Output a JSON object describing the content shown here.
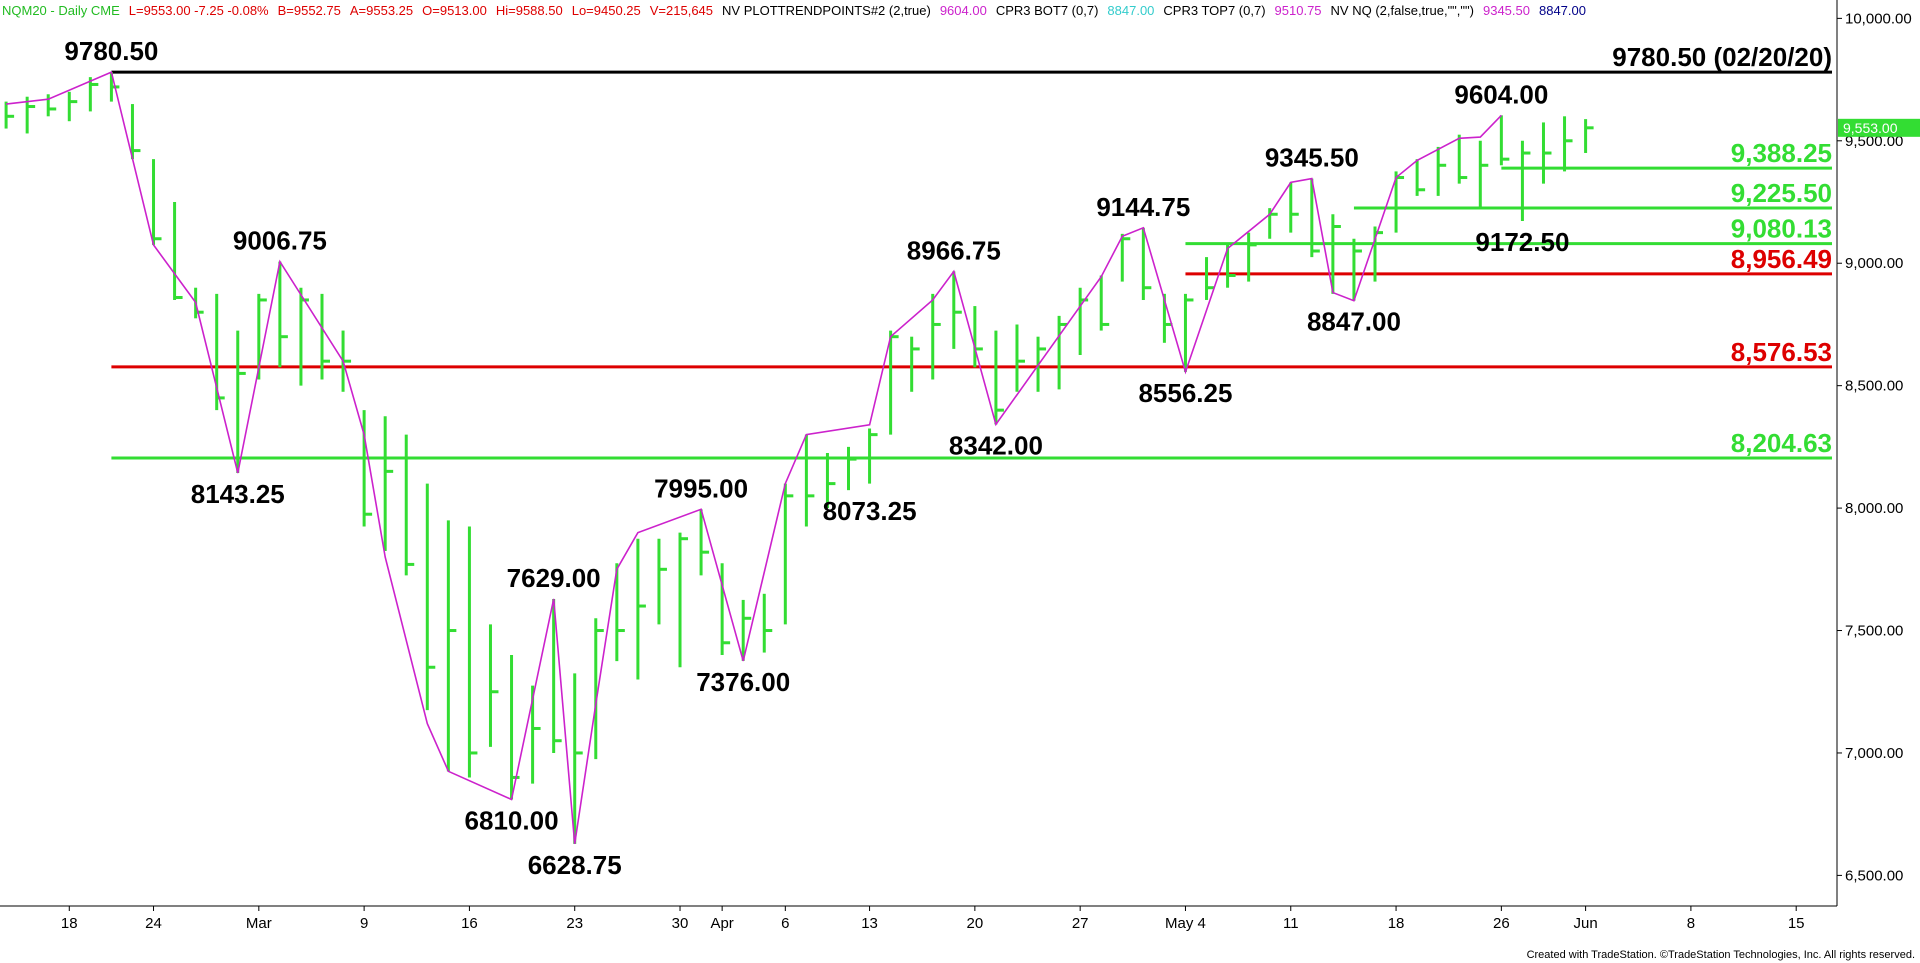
{
  "chart_data": {
    "type": "ohlc",
    "header": [
      {
        "text": "NQM20 - Daily  CME",
        "color": "#22bb22"
      },
      {
        "text": "L=9553.00  -7.25  -0.08%",
        "color": "#dd0000"
      },
      {
        "text": "B=9552.75",
        "color": "#dd0000"
      },
      {
        "text": "A=9553.25",
        "color": "#dd0000"
      },
      {
        "text": "O=9513.00",
        "color": "#dd0000"
      },
      {
        "text": "Hi=9588.50",
        "color": "#dd0000"
      },
      {
        "text": "Lo=9450.25",
        "color": "#dd0000"
      },
      {
        "text": "V=215,645",
        "color": "#dd0000"
      },
      {
        "text": "NV  PLOTTRENDPOINTS#2 (2,true)",
        "color": "#000000"
      },
      {
        "text": "9604.00",
        "color": "#cc22cc"
      },
      {
        "text": "CPR3 BOT7 (0,7)",
        "color": "#000000"
      },
      {
        "text": "8847.00",
        "color": "#33cccc"
      },
      {
        "text": "CPR3 TOP7 (0,7)",
        "color": "#000000"
      },
      {
        "text": "9510.75",
        "color": "#cc22cc"
      },
      {
        "text": "NV NQ (2,false,true,\"\",\"\")",
        "color": "#000000"
      },
      {
        "text": "9345.50",
        "color": "#cc22cc"
      },
      {
        "text": "8847.00",
        "color": "#000088"
      }
    ],
    "categories": [
      null,
      null,
      null,
      "18",
      null,
      null,
      null,
      "24",
      null,
      null,
      null,
      null,
      "Mar",
      null,
      null,
      null,
      null,
      "9",
      null,
      null,
      null,
      null,
      "16",
      null,
      null,
      null,
      null,
      "23",
      null,
      null,
      null,
      null,
      "30",
      null,
      "Apr",
      null,
      null,
      "6",
      null,
      null,
      null,
      "13",
      null,
      null,
      null,
      null,
      "20",
      null,
      null,
      null,
      null,
      "27",
      null,
      null,
      null,
      null,
      "May 4",
      null,
      null,
      null,
      null,
      "11",
      null,
      null,
      null,
      null,
      "18",
      null,
      null,
      null,
      null,
      "26",
      null,
      null,
      null,
      "Jun",
      null,
      null,
      null,
      null,
      "8",
      null,
      null,
      null,
      null,
      "15",
      null
    ],
    "color": "#33dd33",
    "high": [
      9660,
      9680,
      9690,
      9700,
      9760,
      9780.5,
      9650,
      9425,
      9250,
      8900,
      8875,
      8725,
      8875,
      9006.75,
      8900,
      8875,
      8725,
      8400,
      8375,
      8300,
      8100,
      7950,
      7925,
      7525,
      7400,
      7275,
      7629,
      7325,
      7550,
      7775,
      7875,
      7875,
      7900,
      7995,
      7775,
      7625,
      7650,
      8100,
      8300,
      8225,
      8250,
      8325,
      8725,
      8700,
      8875,
      8966.75,
      8825,
      8725,
      8750,
      8700,
      8785,
      8900,
      8950,
      9120,
      9144.75,
      8875,
      8875,
      9025,
      9075,
      9125,
      9225,
      9330,
      9345.5,
      9200,
      9100,
      9150,
      9375,
      9425,
      9475,
      9525,
      9500,
      9604,
      9500,
      9575,
      9600,
      9588.5,
      null,
      null,
      null,
      null,
      null,
      null,
      null,
      null,
      null,
      null,
      null
    ],
    "low": [
      9550,
      9530,
      9600,
      9580,
      9620,
      9660,
      9425,
      9075,
      8850,
      8775,
      8400,
      8143.25,
      8525,
      8575,
      8500,
      8525,
      8475,
      7925,
      7825,
      7725,
      7175,
      6925,
      6900,
      7025,
      6810,
      6875,
      7000,
      6628.75,
      6975,
      7375,
      7300,
      7525,
      7350,
      7725,
      7400,
      7376,
      7410,
      7525,
      7925,
      8000,
      8073.25,
      8100,
      8300,
      8475,
      8525,
      8650,
      8575,
      8342,
      8475,
      8475,
      8485,
      8625,
      8725,
      8925,
      8850,
      8675,
      8556.25,
      8850,
      8900,
      8925,
      9100,
      9125,
      9025,
      8875,
      8847,
      8925,
      9125,
      9275,
      9275,
      9325,
      9225,
      9400,
      9172.5,
      9325,
      9375,
      9450.25,
      null,
      null,
      null,
      null,
      null,
      null,
      null,
      null,
      null,
      null,
      null
    ],
    "close": [
      9600,
      9640,
      9630,
      9660,
      9730,
      9720,
      9460,
      9100,
      8860,
      8800,
      8450,
      8550,
      8850,
      8700,
      8850,
      8600,
      8600,
      7975,
      8150,
      7770,
      7350,
      7500,
      7000,
      7250,
      6900,
      7100,
      7050,
      7000,
      7500,
      7500,
      7600,
      7750,
      7875,
      7820,
      7450,
      7550,
      7500,
      8050,
      8050,
      8100,
      8200,
      8300,
      8700,
      8650,
      8750,
      8800,
      8650,
      8400,
      8600,
      8650,
      8750,
      8850,
      8750,
      9100,
      8900,
      8750,
      8850,
      8900,
      8950,
      9075,
      9200,
      9200,
      9050,
      9150,
      9050,
      9125,
      9350,
      9300,
      9400,
      9350,
      9400,
      9425,
      9450,
      9450,
      9500,
      9553,
      null,
      null,
      null,
      null,
      null,
      null,
      null,
      null,
      null,
      null,
      null
    ],
    "trendline": {
      "color": "#cc22cc",
      "x": [
        0,
        2,
        5,
        7,
        9,
        11,
        13,
        16,
        17,
        18,
        20,
        21,
        24,
        26,
        27,
        28,
        29,
        30,
        33,
        35,
        37,
        38,
        41,
        42,
        44,
        45,
        47,
        52,
        53,
        54,
        56,
        58,
        60,
        61,
        62,
        63,
        64,
        66,
        67,
        69,
        70,
        71
      ],
      "values": [
        9650,
        9670,
        9780.5,
        9075,
        8840,
        8143.25,
        9006.75,
        8600,
        8300,
        7800,
        7120,
        6925,
        6810,
        7629,
        6628.75,
        7200,
        7750,
        7900,
        7995,
        7376,
        8100,
        8300,
        8340,
        8700,
        8850,
        8966.75,
        8342,
        8945,
        9110,
        9144.75,
        8556.25,
        9060,
        9200,
        9330,
        9345.5,
        8880,
        8847,
        9350,
        9420,
        9510,
        9515,
        9604
      ]
    },
    "levels": [
      {
        "value": 9780.5,
        "label": "9780.50 (02/20/20)",
        "color": "#000000",
        "from": 5
      },
      {
        "value": 9388.25,
        "label": "9,388.25",
        "color": "#33dd33",
        "from": 71
      },
      {
        "value": 9225.5,
        "label": "9,225.50",
        "color": "#33dd33",
        "from": 64
      },
      {
        "value": 9080.13,
        "label": "9,080.13",
        "color": "#33dd33",
        "from": 56
      },
      {
        "value": 8956.49,
        "label": "8,956.49",
        "color": "#dd0000",
        "from": 56
      },
      {
        "value": 8576.53,
        "label": "8,576.53",
        "color": "#dd0000",
        "from": 5
      },
      {
        "value": 8204.63,
        "label": "8,204.63",
        "color": "#33dd33",
        "from": 5
      }
    ],
    "annotations": [
      {
        "x": 5,
        "value": 9780.5,
        "label": "9780.50",
        "position": "above"
      },
      {
        "x": 13,
        "value": 9006.75,
        "label": "9006.75",
        "position": "above"
      },
      {
        "x": 11,
        "value": 8143.25,
        "label": "8143.25",
        "position": "below"
      },
      {
        "x": 26,
        "value": 7629,
        "label": "7629.00",
        "position": "above"
      },
      {
        "x": 24,
        "value": 6810,
        "label": "6810.00",
        "position": "below"
      },
      {
        "x": 27,
        "value": 6628.75,
        "label": "6628.75",
        "position": "below"
      },
      {
        "x": 33,
        "value": 7995,
        "label": "7995.00",
        "position": "above"
      },
      {
        "x": 35,
        "value": 7376,
        "label": "7376.00",
        "position": "below"
      },
      {
        "x": 41,
        "value": 8073.25,
        "label": "8073.25",
        "position": "below"
      },
      {
        "x": 45,
        "value": 8966.75,
        "label": "8966.75",
        "position": "above"
      },
      {
        "x": 47,
        "value": 8342,
        "label": "8342.00",
        "position": "below"
      },
      {
        "x": 54,
        "value": 9144.75,
        "label": "9144.75",
        "position": "above"
      },
      {
        "x": 56,
        "value": 8556.25,
        "label": "8556.25",
        "position": "below"
      },
      {
        "x": 62,
        "value": 9345.5,
        "label": "9345.50",
        "position": "above"
      },
      {
        "x": 64,
        "value": 8847,
        "label": "8847.00",
        "position": "below"
      },
      {
        "x": 71,
        "value": 9604,
        "label": "9604.00",
        "position": "above"
      },
      {
        "x": 72,
        "value": 9172.5,
        "label": "9172.50",
        "position": "below"
      }
    ],
    "ylim": [
      6375,
      10075
    ],
    "yticks": [
      {
        "value": 6500,
        "label": "6,500.00"
      },
      {
        "value": 7000,
        "label": "7,000.00"
      },
      {
        "value": 7500,
        "label": "7,500.00"
      },
      {
        "value": 8000,
        "label": "8,000.00"
      },
      {
        "value": 8500,
        "label": "8,500.00"
      },
      {
        "value": 9000,
        "label": "9,000.00"
      },
      {
        "value": 9500,
        "label": "9,500.00"
      },
      {
        "value": 10000,
        "label": "10,000.00"
      }
    ],
    "last_price": {
      "value": 9553,
      "label": "9,553.00",
      "color": "#33dd33"
    },
    "footer": "Created with TradeStation. ©TradeStation Technologies, Inc. All rights reserved."
  }
}
